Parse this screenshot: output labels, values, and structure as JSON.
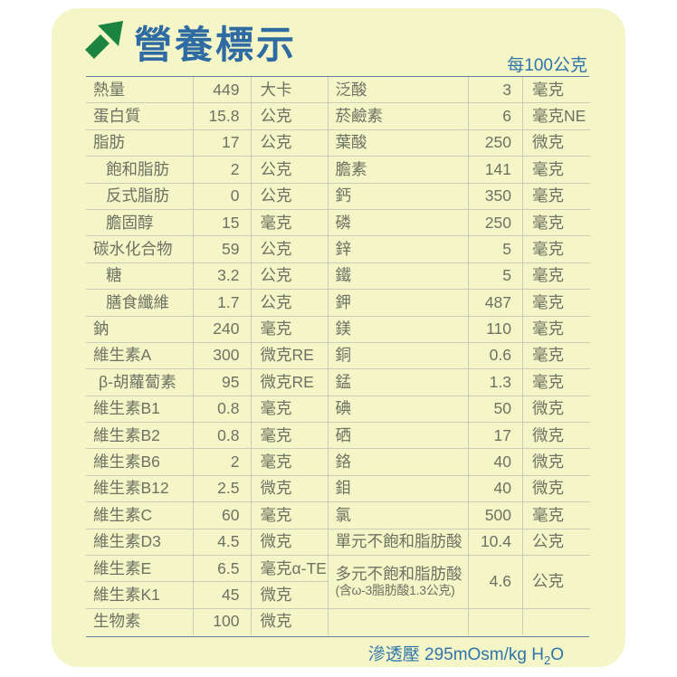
{
  "header": {
    "title": "營養標示",
    "per_serving_label": "每100公克",
    "arrow_icon": "arrow-up-right-icon",
    "colors": {
      "title_blue": "#2e6ba3",
      "arrow_green": "#1c8441",
      "card_background": "#f4f6c7",
      "grid_line": "#cacdb7",
      "rule_line": "#64809c",
      "table_text": "#6d7263"
    }
  },
  "table": {
    "left_rows": [
      {
        "name": "熱量",
        "value": "449",
        "unit": "大卡"
      },
      {
        "name": "蛋白質",
        "value": "15.8",
        "unit": "公克"
      },
      {
        "name": "脂肪",
        "value": "17",
        "unit": "公克"
      },
      {
        "name": "飽和脂肪",
        "value": "2",
        "unit": "公克",
        "indent": "sub"
      },
      {
        "name": "反式脂肪",
        "value": "0",
        "unit": "公克",
        "indent": "sub"
      },
      {
        "name": "膽固醇",
        "value": "15",
        "unit": "毫克",
        "indent": "sub"
      },
      {
        "name": "碳水化合物",
        "value": "59",
        "unit": "公克"
      },
      {
        "name": "糖",
        "value": "3.2",
        "unit": "公克",
        "indent": "sub"
      },
      {
        "name": "膳食纖維",
        "value": "1.7",
        "unit": "公克",
        "indent": "sub"
      },
      {
        "name": "鈉",
        "value": "240",
        "unit": "毫克"
      },
      {
        "name": "維生素A",
        "value": "300",
        "unit": "微克RE"
      },
      {
        "name": "β-胡蘿蔔素",
        "value": "95",
        "unit": "微克RE",
        "indent": "small"
      },
      {
        "name": "維生素B1",
        "value": "0.8",
        "unit": "毫克"
      },
      {
        "name": "維生素B2",
        "value": "0.8",
        "unit": "毫克"
      },
      {
        "name": "維生素B6",
        "value": "2",
        "unit": "毫克"
      },
      {
        "name": "維生素B12",
        "value": "2.5",
        "unit": "微克"
      },
      {
        "name": "維生素C",
        "value": "60",
        "unit": "毫克"
      },
      {
        "name": "維生素D3",
        "value": "4.5",
        "unit": "微克"
      },
      {
        "name": "維生素E",
        "value": "6.5",
        "unit": "毫克α-TE"
      },
      {
        "name": "維生素K1",
        "value": "45",
        "unit": "微克"
      },
      {
        "name": "生物素",
        "value": "100",
        "unit": "微克"
      }
    ],
    "right_rows": [
      {
        "name": "泛酸",
        "value": "3",
        "unit": "毫克"
      },
      {
        "name": "菸鹼素",
        "value": "6",
        "unit": "毫克NE"
      },
      {
        "name": "葉酸",
        "value": "250",
        "unit": "微克"
      },
      {
        "name": "膽素",
        "value": "141",
        "unit": "毫克"
      },
      {
        "name": "鈣",
        "value": "350",
        "unit": "毫克"
      },
      {
        "name": "磷",
        "value": "250",
        "unit": "毫克"
      },
      {
        "name": "鋅",
        "value": "5",
        "unit": "毫克"
      },
      {
        "name": "鐵",
        "value": "5",
        "unit": "毫克"
      },
      {
        "name": "鉀",
        "value": "487",
        "unit": "毫克"
      },
      {
        "name": "鎂",
        "value": "110",
        "unit": "毫克"
      },
      {
        "name": "銅",
        "value": "0.6",
        "unit": "毫克"
      },
      {
        "name": "錳",
        "value": "1.3",
        "unit": "毫克"
      },
      {
        "name": "碘",
        "value": "50",
        "unit": "微克"
      },
      {
        "name": "硒",
        "value": "17",
        "unit": "微克"
      },
      {
        "name": "鉻",
        "value": "40",
        "unit": "微克"
      },
      {
        "name": "鉬",
        "value": "40",
        "unit": "微克"
      },
      {
        "name": "氯",
        "value": "500",
        "unit": "毫克"
      },
      {
        "name": "單元不飽和脂肪酸",
        "value": "10.4",
        "unit": "公克"
      },
      {
        "name": "多元不飽和脂肪酸",
        "name_note": "(含ω-3脂肪酸1.3公克)",
        "value": "4.6",
        "unit": "公克",
        "rowspan": 2
      },
      {
        "name": "",
        "value": "",
        "unit": ""
      }
    ]
  },
  "footer": {
    "osmolality_prefix": "滲透壓 295mOsm/kg H",
    "osmolality_sub": "2",
    "osmolality_suffix": "O"
  }
}
